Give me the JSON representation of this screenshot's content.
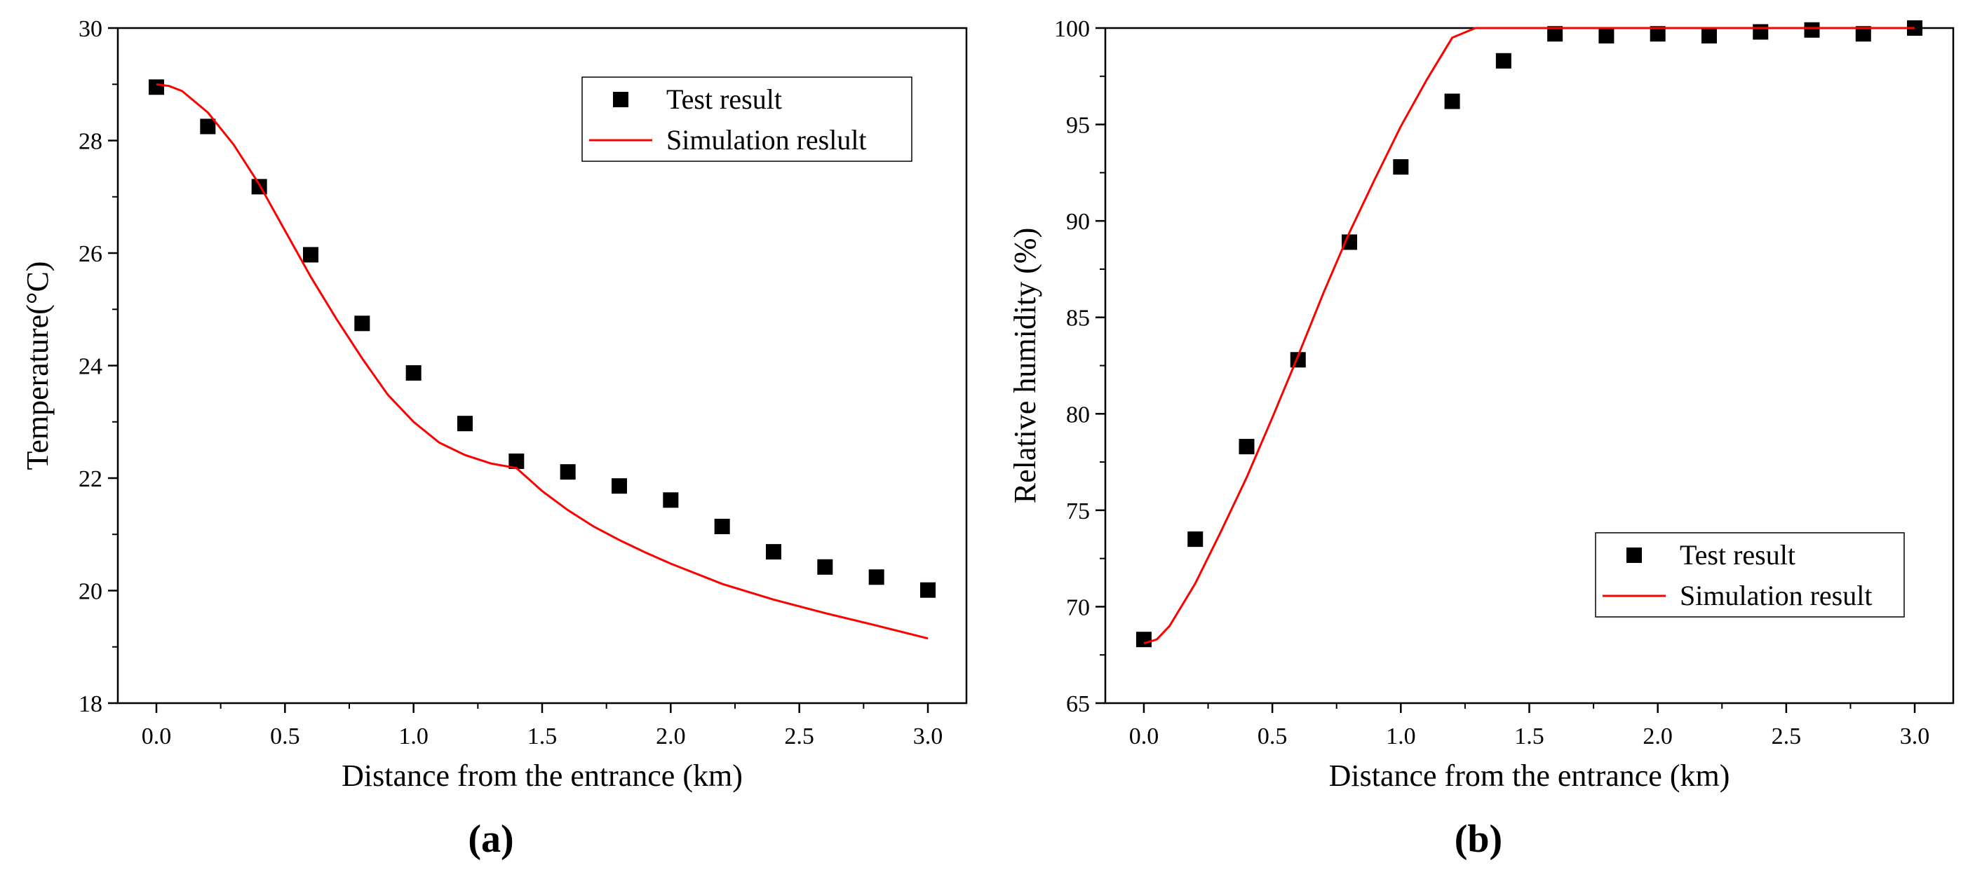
{
  "chart_data": [
    {
      "type": "scatter",
      "panel_label": "(a)",
      "title": "",
      "xlabel": "Distance from the entrance (km)",
      "ylabel": "Temperature(°C)",
      "xlim": [
        -0.15,
        3.15
      ],
      "ylim": [
        18,
        30
      ],
      "xticks": [
        0.0,
        0.5,
        1.0,
        1.5,
        2.0,
        2.5,
        3.0
      ],
      "xtick_labels": [
        "0.0",
        "0.5",
        "1.0",
        "1.5",
        "2.0",
        "2.5",
        "3.0"
      ],
      "yticks": [
        18,
        20,
        22,
        24,
        26,
        28,
        30
      ],
      "ytick_labels": [
        "18",
        "20",
        "22",
        "24",
        "26",
        "28",
        "30"
      ],
      "grid": false,
      "legend_position": "top-right",
      "series": [
        {
          "name": "Test result",
          "kind": "markers",
          "color": "#000000",
          "x": [
            0.0,
            0.2,
            0.4,
            0.6,
            0.8,
            1.0,
            1.2,
            1.4,
            1.6,
            1.8,
            2.0,
            2.2,
            2.4,
            2.6,
            2.8,
            3.0
          ],
          "y": [
            28.95,
            28.25,
            27.18,
            25.97,
            24.75,
            23.87,
            22.97,
            22.3,
            22.11,
            21.86,
            21.61,
            21.14,
            20.69,
            20.42,
            20.24,
            20.01
          ]
        },
        {
          "name": "Simulation reslult",
          "kind": "line",
          "color": "#ff0000",
          "x": [
            0.0,
            0.05,
            0.1,
            0.2,
            0.3,
            0.4,
            0.5,
            0.6,
            0.7,
            0.8,
            0.9,
            1.0,
            1.1,
            1.2,
            1.3,
            1.4,
            1.5,
            1.6,
            1.7,
            1.8,
            1.9,
            2.0,
            2.2,
            2.4,
            2.6,
            2.8,
            3.0
          ],
          "y": [
            29.0,
            28.97,
            28.88,
            28.5,
            27.93,
            27.22,
            26.4,
            25.58,
            24.83,
            24.13,
            23.48,
            23.0,
            22.63,
            22.41,
            22.26,
            22.18,
            21.77,
            21.43,
            21.14,
            20.9,
            20.68,
            20.48,
            20.12,
            19.84,
            19.6,
            19.38,
            19.15
          ]
        }
      ]
    },
    {
      "type": "scatter",
      "panel_label": "(b)",
      "title": "",
      "xlabel": "Distance from the entrance (km)",
      "ylabel": "Relative humidity (%)",
      "xlim": [
        -0.15,
        3.15
      ],
      "ylim": [
        65,
        100
      ],
      "xticks": [
        0.0,
        0.5,
        1.0,
        1.5,
        2.0,
        2.5,
        3.0
      ],
      "xtick_labels": [
        "0.0",
        "0.5",
        "1.0",
        "1.5",
        "2.0",
        "2.5",
        "3.0"
      ],
      "yticks": [
        65,
        70,
        75,
        80,
        85,
        90,
        95,
        100
      ],
      "ytick_labels": [
        "65",
        "70",
        "75",
        "80",
        "85",
        "90",
        "95",
        "100"
      ],
      "grid": false,
      "legend_position": "bottom-right",
      "series": [
        {
          "name": "Test result",
          "kind": "markers",
          "color": "#000000",
          "x": [
            0.0,
            0.2,
            0.4,
            0.6,
            0.8,
            1.0,
            1.2,
            1.4,
            1.6,
            1.8,
            2.0,
            2.2,
            2.4,
            2.6,
            2.8,
            3.0
          ],
          "y": [
            68.3,
            73.5,
            78.3,
            82.8,
            88.9,
            92.8,
            96.2,
            98.3,
            99.7,
            99.6,
            99.7,
            99.6,
            99.8,
            99.9,
            99.7,
            100.0
          ]
        },
        {
          "name": "Simulation result",
          "kind": "line",
          "color": "#ff0000",
          "x": [
            0.0,
            0.05,
            0.1,
            0.2,
            0.3,
            0.4,
            0.5,
            0.6,
            0.7,
            0.8,
            0.9,
            1.0,
            1.1,
            1.2,
            1.29,
            1.5,
            2.0,
            2.5,
            3.0
          ],
          "y": [
            68.1,
            68.3,
            69.0,
            71.2,
            73.9,
            76.7,
            79.8,
            83.0,
            86.3,
            89.4,
            92.2,
            94.9,
            97.3,
            99.5,
            100.0,
            100.0,
            100.0,
            100.0,
            100.0
          ]
        }
      ]
    }
  ]
}
